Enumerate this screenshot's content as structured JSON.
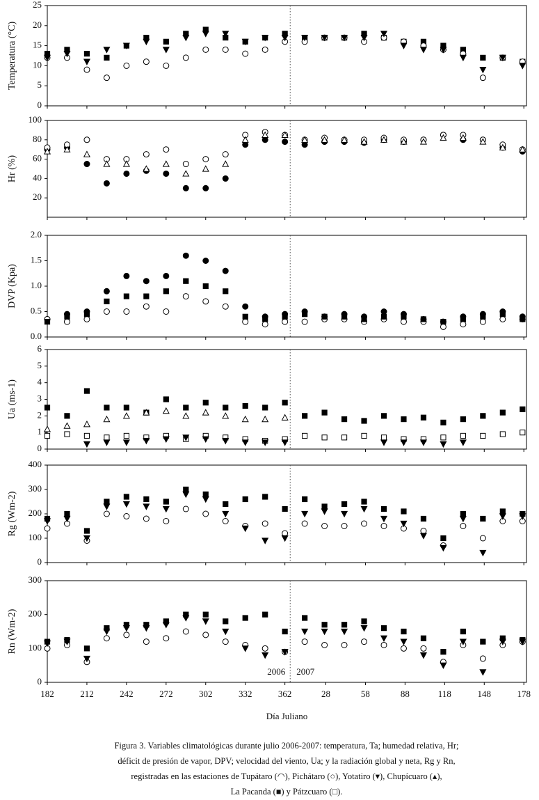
{
  "chart_data": [
    {
      "type": "scatter",
      "ylabel": "Temperatura (°C)",
      "ylim": [
        0,
        25
      ],
      "yticks": [
        0,
        5,
        10,
        15,
        20,
        25
      ],
      "xlim": [
        182,
        545
      ],
      "vline": 366,
      "x": [
        182,
        197,
        212,
        227,
        242,
        257,
        272,
        287,
        302,
        317,
        332,
        347,
        362,
        377,
        392,
        407,
        422,
        437,
        452,
        467,
        482,
        497,
        512,
        527,
        542
      ],
      "series": [
        {
          "marker": "square-filled",
          "color": "#000000",
          "values": [
            13,
            14,
            13,
            12,
            15,
            17,
            16,
            18,
            19,
            17,
            16,
            17,
            18,
            17,
            17,
            17,
            18,
            17,
            16,
            16,
            15,
            14,
            12,
            12,
            11
          ]
        },
        {
          "marker": "circle-open",
          "color": "#000000",
          "values": [
            12,
            12,
            9,
            7,
            10,
            11,
            10,
            12,
            14,
            14,
            13,
            14,
            16,
            16,
            17,
            17,
            16,
            17,
            16,
            15,
            14,
            13,
            7,
            12,
            11
          ]
        },
        {
          "marker": "triangle-down-filled",
          "color": "#000000",
          "values": [
            12,
            13,
            11,
            14,
            15,
            16,
            14,
            17,
            18,
            18,
            16,
            17,
            17,
            17,
            17,
            17,
            17,
            18,
            15,
            14,
            14,
            12,
            9,
            12,
            10
          ]
        }
      ]
    },
    {
      "type": "scatter",
      "ylabel": "Hr (%)",
      "ylim": [
        0,
        100
      ],
      "yticks": [
        20,
        40,
        60,
        80,
        100
      ],
      "xlim": [
        182,
        545
      ],
      "vline": 366,
      "x": [
        182,
        197,
        212,
        227,
        242,
        257,
        272,
        287,
        302,
        317,
        332,
        347,
        362,
        377,
        392,
        407,
        422,
        437,
        452,
        467,
        482,
        497,
        512,
        527,
        542
      ],
      "series": [
        {
          "marker": "circle-filled",
          "color": "#000000",
          "values": [
            70,
            72,
            55,
            35,
            45,
            48,
            45,
            30,
            30,
            40,
            75,
            80,
            78,
            75,
            78,
            78,
            77,
            80,
            78,
            80,
            85,
            80,
            80,
            72,
            68
          ]
        },
        {
          "marker": "circle-open",
          "color": "#000000",
          "values": [
            72,
            75,
            80,
            60,
            60,
            65,
            70,
            55,
            60,
            65,
            85,
            88,
            85,
            80,
            82,
            80,
            80,
            82,
            80,
            80,
            85,
            85,
            80,
            75,
            70
          ]
        },
        {
          "marker": "triangle-up-open",
          "color": "#000000",
          "values": [
            68,
            70,
            65,
            55,
            55,
            50,
            55,
            45,
            50,
            55,
            80,
            85,
            85,
            80,
            80,
            80,
            78,
            80,
            78,
            78,
            82,
            82,
            78,
            72,
            70
          ]
        }
      ]
    },
    {
      "type": "scatter",
      "ylabel": "DVP (Kpa)",
      "ylim": [
        0,
        2
      ],
      "yticks": [
        {
          "value": 0,
          "label": "0.0"
        },
        0.5,
        {
          "value": 1,
          "label": "1.0"
        },
        1.5,
        {
          "value": 2,
          "label": "2.0"
        }
      ],
      "xlim": [
        182,
        545
      ],
      "vline": 366,
      "x": [
        182,
        197,
        212,
        227,
        242,
        257,
        272,
        287,
        302,
        317,
        332,
        347,
        362,
        377,
        392,
        407,
        422,
        437,
        452,
        467,
        482,
        497,
        512,
        527,
        542
      ],
      "series": [
        {
          "marker": "circle-filled",
          "color": "#000000",
          "values": [
            0.35,
            0.45,
            0.5,
            0.9,
            1.2,
            1.1,
            1.2,
            1.6,
            1.5,
            1.3,
            0.6,
            0.4,
            0.45,
            0.5,
            0.4,
            0.45,
            0.4,
            0.5,
            0.45,
            0.35,
            0.3,
            0.4,
            0.45,
            0.5,
            0.4
          ]
        },
        {
          "marker": "circle-open",
          "color": "#000000",
          "values": [
            0.35,
            0.3,
            0.35,
            0.5,
            0.5,
            0.6,
            0.5,
            0.8,
            0.7,
            0.6,
            0.3,
            0.25,
            0.3,
            0.3,
            0.35,
            0.35,
            0.3,
            0.35,
            0.3,
            0.3,
            0.2,
            0.25,
            0.3,
            0.35,
            0.35
          ]
        },
        {
          "marker": "square-filled",
          "color": "#000000",
          "values": [
            0.3,
            0.4,
            0.45,
            0.7,
            0.8,
            0.8,
            0.9,
            1.1,
            1.0,
            0.9,
            0.4,
            0.35,
            0.4,
            0.45,
            0.4,
            0.4,
            0.35,
            0.4,
            0.4,
            0.35,
            0.3,
            0.35,
            0.4,
            0.45,
            0.35
          ]
        }
      ]
    },
    {
      "type": "scatter",
      "ylabel": "Ua (ms-1)",
      "ylim": [
        0,
        6
      ],
      "yticks": [
        0,
        1,
        2,
        3,
        4,
        5,
        6
      ],
      "xlim": [
        182,
        545
      ],
      "vline": 366,
      "x": [
        182,
        197,
        212,
        227,
        242,
        257,
        272,
        287,
        302,
        317,
        332,
        347,
        362,
        377,
        392,
        407,
        422,
        437,
        452,
        467,
        482,
        497,
        512,
        527,
        542
      ],
      "series": [
        {
          "marker": "square-filled",
          "color": "#000000",
          "values": [
            2.5,
            2.0,
            3.5,
            2.5,
            2.5,
            2.2,
            3.0,
            2.5,
            2.8,
            2.5,
            2.6,
            2.5,
            2.8,
            2.0,
            2.2,
            1.8,
            1.7,
            2.0,
            1.8,
            1.9,
            1.6,
            1.8,
            2.0,
            2.2,
            2.4
          ]
        },
        {
          "marker": "triangle-up-open",
          "color": "#000000",
          "values": [
            1.2,
            1.4,
            1.5,
            1.8,
            2.0,
            2.2,
            2.3,
            2.0,
            2.2,
            2.0,
            1.8,
            1.8,
            1.9,
            null,
            null,
            null,
            null,
            null,
            null,
            null,
            null,
            null,
            null,
            null,
            null
          ]
        },
        {
          "marker": "square-open",
          "color": "#000000",
          "values": [
            0.8,
            0.9,
            0.8,
            0.7,
            0.8,
            0.7,
            0.8,
            0.6,
            0.8,
            0.7,
            0.6,
            0.5,
            0.6,
            0.8,
            0.7,
            0.7,
            0.8,
            0.7,
            0.6,
            0.6,
            0.7,
            0.8,
            0.8,
            0.9,
            1.0
          ]
        },
        {
          "marker": "triangle-down-filled",
          "color": "#000000",
          "values": [
            null,
            null,
            0.3,
            0.4,
            0.4,
            0.5,
            0.6,
            0.7,
            0.6,
            0.5,
            0.4,
            0.4,
            0.4,
            null,
            null,
            null,
            null,
            0.4,
            0.4,
            0.4,
            0.3,
            0.4,
            null,
            null,
            null
          ]
        }
      ]
    },
    {
      "type": "scatter",
      "ylabel": "Rg (Wm-2)",
      "ylim": [
        0,
        400
      ],
      "yticks": [
        0,
        100,
        200,
        300,
        400
      ],
      "xlim": [
        182,
        545
      ],
      "vline": 366,
      "x": [
        182,
        197,
        212,
        227,
        242,
        257,
        272,
        287,
        302,
        317,
        332,
        347,
        362,
        377,
        392,
        407,
        422,
        437,
        452,
        467,
        482,
        497,
        512,
        527,
        542
      ],
      "series": [
        {
          "marker": "square-filled",
          "color": "#000000",
          "values": [
            180,
            200,
            130,
            250,
            270,
            260,
            250,
            300,
            280,
            240,
            260,
            270,
            220,
            260,
            230,
            240,
            250,
            220,
            210,
            180,
            100,
            200,
            180,
            210,
            200
          ]
        },
        {
          "marker": "circle-open",
          "color": "#000000",
          "values": [
            140,
            160,
            90,
            200,
            190,
            180,
            170,
            220,
            200,
            170,
            150,
            160,
            120,
            160,
            150,
            150,
            160,
            150,
            140,
            130,
            70,
            150,
            100,
            170,
            170
          ]
        },
        {
          "marker": "triangle-down-filled",
          "color": "#000000",
          "values": [
            170,
            180,
            100,
            230,
            240,
            230,
            220,
            280,
            260,
            200,
            140,
            90,
            100,
            200,
            210,
            200,
            220,
            180,
            160,
            110,
            60,
            180,
            40,
            190,
            190
          ]
        }
      ]
    },
    {
      "type": "scatter",
      "ylabel": "Rn (Wm-2)",
      "xlabel": "Día Juliano",
      "ylim": [
        0,
        300
      ],
      "yticks": [
        0,
        100,
        200,
        300
      ],
      "xlim": [
        182,
        545
      ],
      "vline": 366,
      "xticks": [
        182,
        212,
        242,
        272,
        302,
        332,
        362,
        {
          "value": 393,
          "label": "28"
        },
        {
          "value": 423,
          "label": "58"
        },
        {
          "value": 453,
          "label": "88"
        },
        {
          "value": 483,
          "label": "118"
        },
        {
          "value": 513,
          "label": "148"
        },
        {
          "value": 543,
          "label": "178"
        }
      ],
      "annotations": [
        "2006",
        "2007"
      ],
      "x": [
        182,
        197,
        212,
        227,
        242,
        257,
        272,
        287,
        302,
        317,
        332,
        347,
        362,
        377,
        392,
        407,
        422,
        437,
        452,
        467,
        482,
        497,
        512,
        527,
        542
      ],
      "series": [
        {
          "marker": "square-filled",
          "color": "#000000",
          "values": [
            120,
            125,
            100,
            160,
            170,
            170,
            180,
            200,
            200,
            180,
            190,
            200,
            150,
            190,
            170,
            170,
            180,
            160,
            150,
            130,
            90,
            150,
            120,
            130,
            125
          ]
        },
        {
          "marker": "circle-open",
          "color": "#000000",
          "values": [
            100,
            110,
            60,
            130,
            140,
            120,
            130,
            150,
            140,
            120,
            110,
            100,
            90,
            120,
            110,
            110,
            120,
            110,
            100,
            100,
            60,
            110,
            70,
            110,
            120
          ]
        },
        {
          "marker": "triangle-down-filled",
          "color": "#000000",
          "values": [
            115,
            120,
            70,
            150,
            160,
            160,
            170,
            190,
            180,
            150,
            100,
            80,
            90,
            150,
            150,
            150,
            160,
            130,
            120,
            80,
            50,
            120,
            30,
            120,
            120
          ]
        }
      ]
    }
  ],
  "caption": [
    "Figura 3. Variables climatológicas durante julio 2006-2007: temperatura, Ta; humedad relativa, Hr;",
    "déficit de presión de vapor, DPV; velocidad del viento, Ua; y la radiación global y neta, Rg y Rn,",
    "registradas en las estaciones de Tupátaro (◠), Pichátaro (○), Yotatiro (▾), Chupícuaro (▴),",
    "La Pacanda (■) y Pátzcuaro (□)."
  ]
}
